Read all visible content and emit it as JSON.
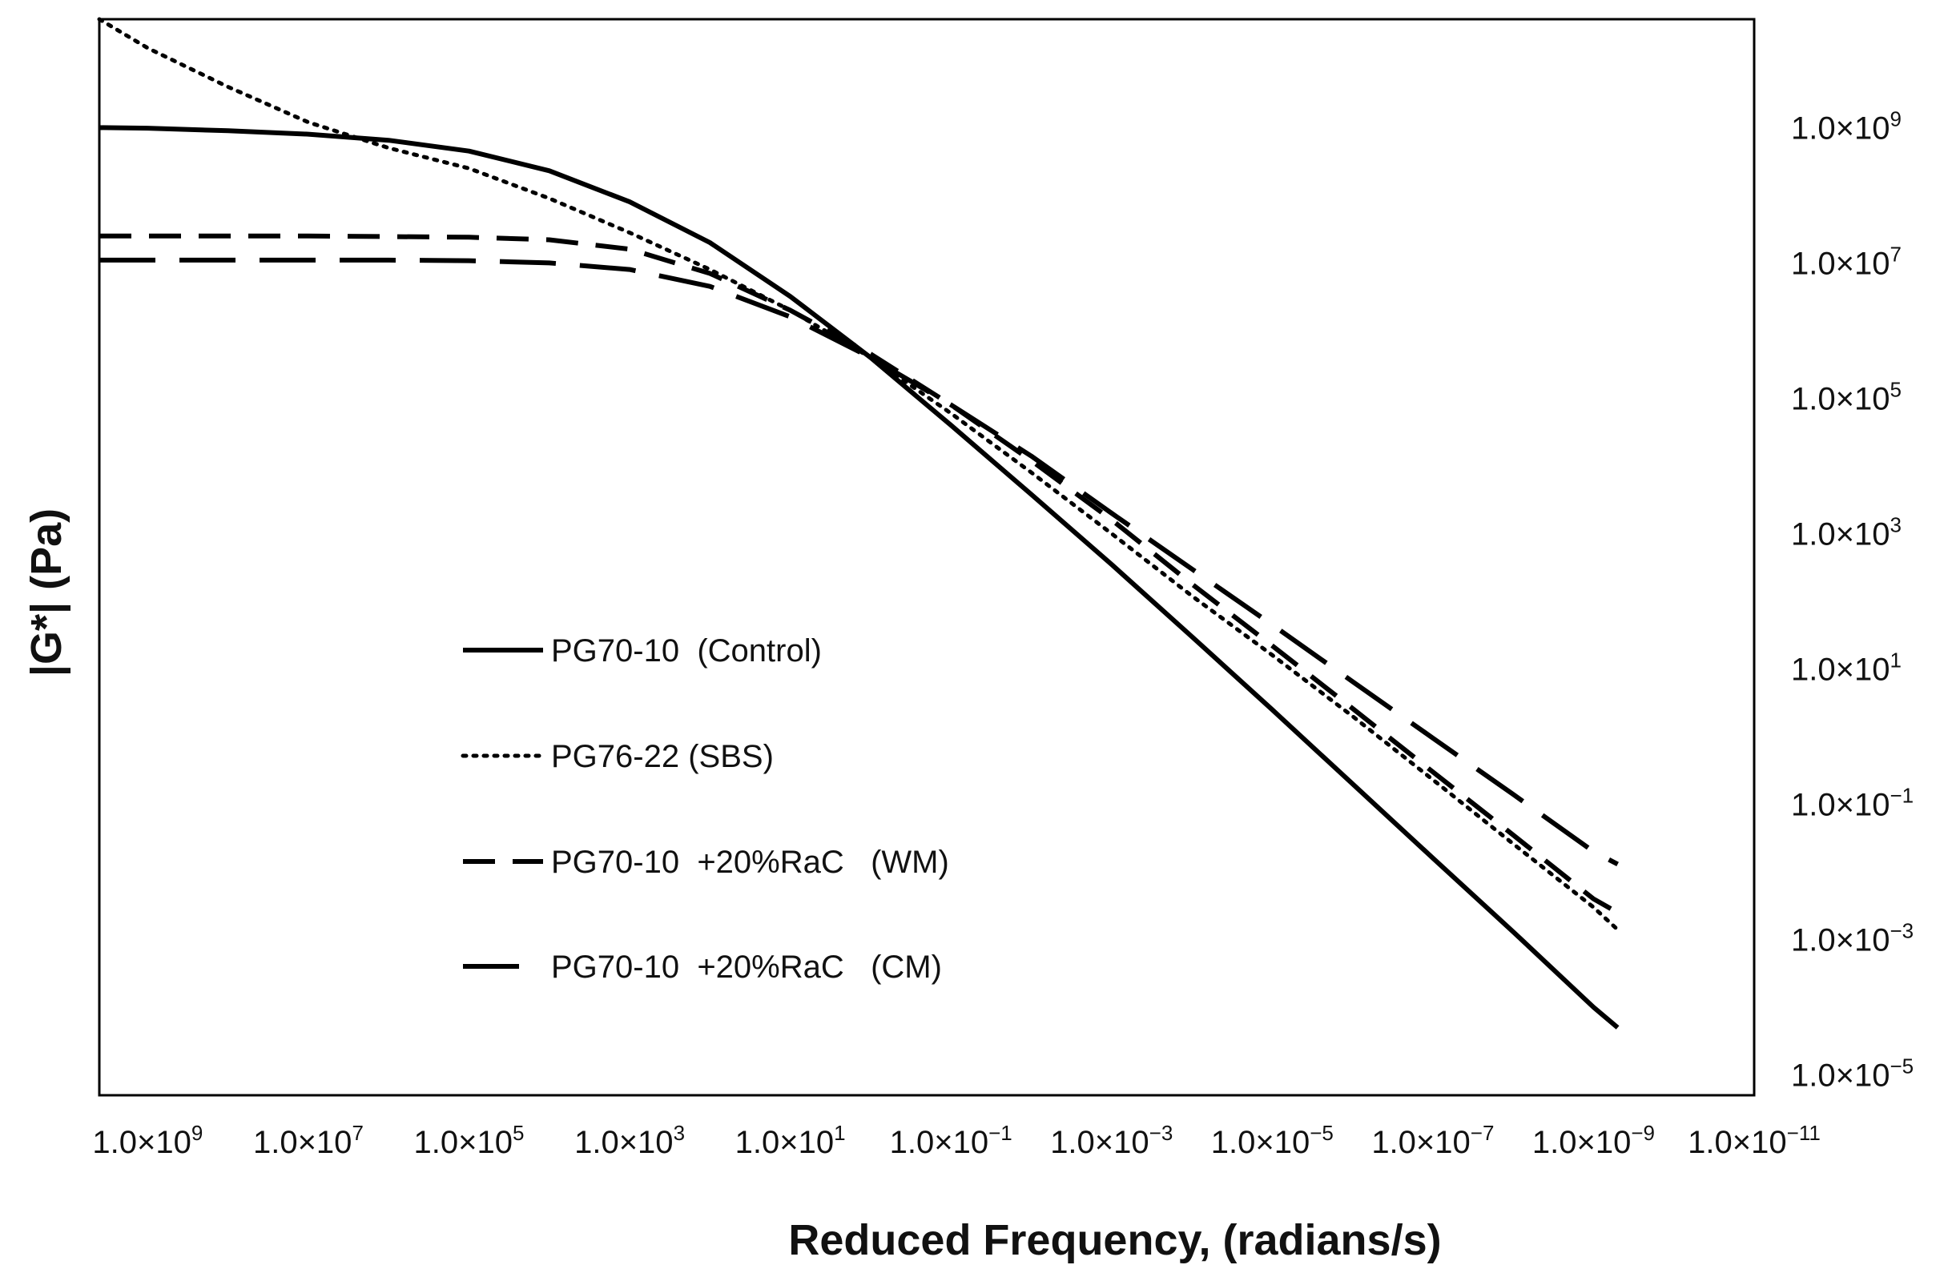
{
  "chart_data": {
    "type": "line",
    "title": "",
    "xlabel": "Reduced Frequency, (radians/s)",
    "ylabel": "|G*| (Pa)",
    "x_scale": "log",
    "y_scale": "log",
    "x_reversed": true,
    "xlim": [
      4000000000.0,
      1e-11
    ],
    "ylim": [
      5e-06,
      40000000000.0
    ],
    "y_axis_position": "right",
    "grid": false,
    "legend_position": "center-left",
    "x_ticks": [
      {
        "value": 1000000000.0,
        "mantissa": "1.0×10",
        "exp": "9"
      },
      {
        "value": 10000000.0,
        "mantissa": "1.0×10",
        "exp": "7"
      },
      {
        "value": 100000.0,
        "mantissa": "1.0×10",
        "exp": "5"
      },
      {
        "value": 1000.0,
        "mantissa": "1.0×10",
        "exp": "3"
      },
      {
        "value": 10.0,
        "mantissa": "1.0×10",
        "exp": "1"
      },
      {
        "value": 0.1,
        "mantissa": "1.0×10",
        "exp": "−1"
      },
      {
        "value": 0.001,
        "mantissa": "1.0×10",
        "exp": "−3"
      },
      {
        "value": 1e-05,
        "mantissa": "1.0×10",
        "exp": "−5"
      },
      {
        "value": 1e-07,
        "mantissa": "1.0×10",
        "exp": "−7"
      },
      {
        "value": 1e-09,
        "mantissa": "1.0×10",
        "exp": "−9"
      },
      {
        "value": 1e-11,
        "mantissa": "1.0×10",
        "exp": "−11"
      }
    ],
    "y_ticks": [
      {
        "value": 1000000000.0,
        "mantissa": "1.0×10",
        "exp": "9"
      },
      {
        "value": 10000000.0,
        "mantissa": "1.0×10",
        "exp": "7"
      },
      {
        "value": 100000.0,
        "mantissa": "1.0×10",
        "exp": "5"
      },
      {
        "value": 1000.0,
        "mantissa": "1.0×10",
        "exp": "3"
      },
      {
        "value": 10.0,
        "mantissa": "1.0×10",
        "exp": "1"
      },
      {
        "value": 0.1,
        "mantissa": "1.0×10",
        "exp": "−1"
      },
      {
        "value": 0.001,
        "mantissa": "1.0×10",
        "exp": "−3"
      },
      {
        "value": 1e-05,
        "mantissa": "1.0×10",
        "exp": "−5"
      }
    ],
    "series": [
      {
        "name": "PG70-10  (Control)",
        "style": "solid",
        "color": "#000000",
        "points": [
          [
            4000000000.0,
            1000000000.0
          ],
          [
            1000000000.0,
            980000000.0
          ],
          [
            100000000.0,
            900000000.0
          ],
          [
            10000000.0,
            800000000.0
          ],
          [
            1000000.0,
            650000000.0
          ],
          [
            100000.0,
            450000000.0
          ],
          [
            10000.0,
            230000000.0
          ],
          [
            1000.0,
            80000000.0
          ],
          [
            100.0,
            20000000.0
          ],
          [
            10.0,
            3200000.0
          ],
          [
            1.0,
            400000.0
          ],
          [
            0.1,
            40000.0
          ],
          [
            0.01,
            3800.0
          ],
          [
            0.001,
            350.0
          ],
          [
            0.0001,
            30.0
          ],
          [
            1e-05,
            2.5
          ],
          [
            1e-06,
            0.2
          ],
          [
            1e-07,
            0.016
          ],
          [
            1e-08,
            0.0013
          ],
          [
            1e-09,
            0.0001
          ],
          [
            5e-10,
            5e-05
          ]
        ]
      },
      {
        "name": "PG76-22 (SBS)",
        "style": "dotted",
        "color": "#000000",
        "points": [
          [
            4000000000.0,
            40000000000.0
          ],
          [
            1000000000.0,
            15000000000.0
          ],
          [
            100000000.0,
            4000000000.0
          ],
          [
            10000000.0,
            1200000000.0
          ],
          [
            1000000.0,
            500000000.0
          ],
          [
            100000.0,
            250000000.0
          ],
          [
            10000.0,
            90000000.0
          ],
          [
            1000.0,
            28000000.0
          ],
          [
            100.0,
            8000000.0
          ],
          [
            10.0,
            2000000.0
          ],
          [
            1.0,
            400000.0
          ],
          [
            0.1,
            60000.0
          ],
          [
            0.01,
            8000.0
          ],
          [
            0.001,
            1000.0
          ],
          [
            0.0001,
            120.0
          ],
          [
            1e-05,
            16.0
          ],
          [
            1e-06,
            2.0
          ],
          [
            1e-07,
            0.23
          ],
          [
            1e-08,
            0.026
          ],
          [
            1e-09,
            0.003
          ],
          [
            5e-10,
            0.0014
          ]
        ]
      },
      {
        "name": "PG70-10  +20%RaC   (WM)",
        "style": "dashed",
        "color": "#000000",
        "points": [
          [
            4000000000.0,
            25000000.0
          ],
          [
            1000000000.0,
            25000000.0
          ],
          [
            100000000.0,
            25000000.0
          ],
          [
            10000000.0,
            25000000.0
          ],
          [
            1000000.0,
            24500000.0
          ],
          [
            100000.0,
            24000000.0
          ],
          [
            10000.0,
            22000000.0
          ],
          [
            1000.0,
            16000000.0
          ],
          [
            100.0,
            7000000.0
          ],
          [
            10.0,
            2000000.0
          ],
          [
            1.0,
            450000.0
          ],
          [
            0.1,
            80000.0
          ],
          [
            0.01,
            12000.0
          ],
          [
            0.001,
            1600.0
          ],
          [
            0.0001,
            180.0
          ],
          [
            1e-05,
            22.0
          ],
          [
            1e-06,
            2.6
          ],
          [
            1e-07,
            0.3
          ],
          [
            1e-08,
            0.035
          ],
          [
            1e-09,
            0.004
          ],
          [
            5e-10,
            0.0025
          ]
        ]
      },
      {
        "name": "PG70-10  +20%RaC   (CM)",
        "style": "longdash",
        "color": "#000000",
        "points": [
          [
            4000000000.0,
            11000000.0
          ],
          [
            1000000000.0,
            11000000.0
          ],
          [
            100000000.0,
            11000000.0
          ],
          [
            10000000.0,
            11000000.0
          ],
          [
            1000000.0,
            11000000.0
          ],
          [
            100000.0,
            10800000.0
          ],
          [
            10000.0,
            10000000.0
          ],
          [
            1000.0,
            8000000.0
          ],
          [
            100.0,
            4500000.0
          ],
          [
            10.0,
            1600000.0
          ],
          [
            1.0,
            400000.0
          ],
          [
            0.1,
            80000.0
          ],
          [
            0.01,
            14000.0
          ],
          [
            0.001,
            2000.0
          ],
          [
            0.0001,
            300.0
          ],
          [
            1e-05,
            45.0
          ],
          [
            1e-06,
            6.5
          ],
          [
            1e-07,
            0.95
          ],
          [
            1e-08,
            0.14
          ],
          [
            1e-09,
            0.02
          ],
          [
            5e-10,
            0.013
          ]
        ]
      }
    ]
  }
}
